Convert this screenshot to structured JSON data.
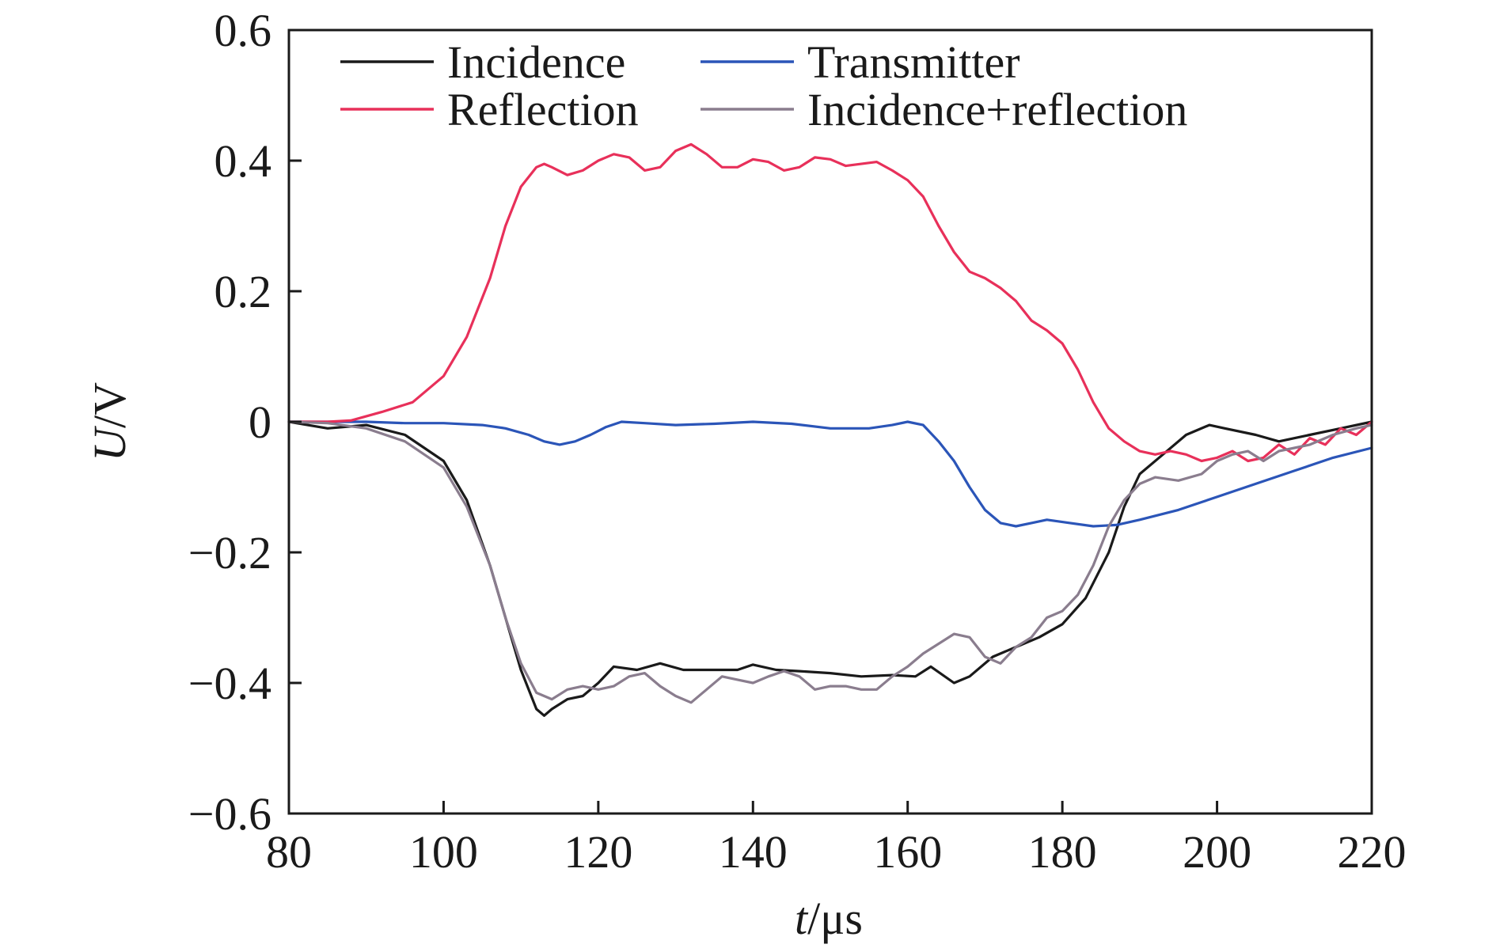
{
  "chart_data": {
    "type": "line",
    "title": "",
    "xlabel": {
      "italic": "t",
      "rest": "/μs"
    },
    "ylabel": {
      "italic": "U",
      "rest": "/V"
    },
    "xlim": [
      80,
      220
    ],
    "ylim": [
      -0.6,
      0.6
    ],
    "xticks": [
      80,
      100,
      120,
      140,
      160,
      180,
      200,
      220
    ],
    "yticks": [
      0.6,
      0.4,
      0.2,
      0,
      -0.2,
      -0.4,
      -0.6
    ],
    "xtick_labels": [
      "80",
      "100",
      "120",
      "140",
      "160",
      "180",
      "200",
      "220"
    ],
    "ytick_labels": [
      "0.6",
      "0.4",
      "0.2",
      "0",
      "−0.2",
      "−0.4",
      "−0.6"
    ],
    "grid": false,
    "legend_position": "top",
    "series": [
      {
        "name": "Incidence",
        "color": "#1a1a1a",
        "points": [
          [
            80,
            0
          ],
          [
            85,
            -0.01
          ],
          [
            90,
            -0.005
          ],
          [
            95,
            -0.02
          ],
          [
            100,
            -0.06
          ],
          [
            103,
            -0.12
          ],
          [
            106,
            -0.22
          ],
          [
            108,
            -0.3
          ],
          [
            110,
            -0.38
          ],
          [
            112,
            -0.44
          ],
          [
            113,
            -0.45
          ],
          [
            114,
            -0.44
          ],
          [
            116,
            -0.425
          ],
          [
            118,
            -0.42
          ],
          [
            120,
            -0.4
          ],
          [
            122,
            -0.375
          ],
          [
            125,
            -0.38
          ],
          [
            128,
            -0.37
          ],
          [
            131,
            -0.38
          ],
          [
            135,
            -0.38
          ],
          [
            138,
            -0.38
          ],
          [
            140,
            -0.372
          ],
          [
            143,
            -0.38
          ],
          [
            146,
            -0.382
          ],
          [
            150,
            -0.385
          ],
          [
            154,
            -0.39
          ],
          [
            158,
            -0.388
          ],
          [
            161,
            -0.39
          ],
          [
            163,
            -0.375
          ],
          [
            166,
            -0.4
          ],
          [
            168,
            -0.39
          ],
          [
            171,
            -0.36
          ],
          [
            174,
            -0.345
          ],
          [
            177,
            -0.33
          ],
          [
            180,
            -0.31
          ],
          [
            183,
            -0.27
          ],
          [
            186,
            -0.2
          ],
          [
            188,
            -0.13
          ],
          [
            190,
            -0.08
          ],
          [
            193,
            -0.05
          ],
          [
            196,
            -0.02
          ],
          [
            199,
            -0.005
          ],
          [
            201,
            -0.01
          ],
          [
            205,
            -0.02
          ],
          [
            208,
            -0.03
          ],
          [
            212,
            -0.02
          ],
          [
            216,
            -0.01
          ],
          [
            220,
            0
          ]
        ]
      },
      {
        "name": "Transmitter",
        "color": "#2b55b8",
        "points": [
          [
            80,
            0
          ],
          [
            90,
            0
          ],
          [
            95,
            -0.002
          ],
          [
            100,
            -0.002
          ],
          [
            105,
            -0.005
          ],
          [
            108,
            -0.01
          ],
          [
            111,
            -0.02
          ],
          [
            113,
            -0.03
          ],
          [
            115,
            -0.035
          ],
          [
            117,
            -0.03
          ],
          [
            119,
            -0.02
          ],
          [
            121,
            -0.008
          ],
          [
            123,
            0
          ],
          [
            126,
            -0.002
          ],
          [
            130,
            -0.005
          ],
          [
            135,
            -0.003
          ],
          [
            140,
            0
          ],
          [
            145,
            -0.003
          ],
          [
            150,
            -0.01
          ],
          [
            155,
            -0.01
          ],
          [
            158,
            -0.005
          ],
          [
            160,
            0
          ],
          [
            162,
            -0.005
          ],
          [
            164,
            -0.03
          ],
          [
            166,
            -0.06
          ],
          [
            168,
            -0.1
          ],
          [
            170,
            -0.135
          ],
          [
            172,
            -0.155
          ],
          [
            174,
            -0.16
          ],
          [
            176,
            -0.155
          ],
          [
            178,
            -0.15
          ],
          [
            181,
            -0.155
          ],
          [
            184,
            -0.16
          ],
          [
            187,
            -0.158
          ],
          [
            190,
            -0.15
          ],
          [
            195,
            -0.135
          ],
          [
            200,
            -0.115
          ],
          [
            205,
            -0.095
          ],
          [
            210,
            -0.075
          ],
          [
            215,
            -0.055
          ],
          [
            220,
            -0.04
          ]
        ]
      },
      {
        "name": "Reflection",
        "color": "#e8305a",
        "points": [
          [
            80,
            0
          ],
          [
            85,
            0
          ],
          [
            88,
            0.002
          ],
          [
            92,
            0.015
          ],
          [
            96,
            0.03
          ],
          [
            100,
            0.07
          ],
          [
            103,
            0.13
          ],
          [
            106,
            0.22
          ],
          [
            108,
            0.3
          ],
          [
            110,
            0.36
          ],
          [
            112,
            0.39
          ],
          [
            113,
            0.395
          ],
          [
            114,
            0.39
          ],
          [
            116,
            0.378
          ],
          [
            118,
            0.385
          ],
          [
            120,
            0.4
          ],
          [
            122,
            0.41
          ],
          [
            124,
            0.405
          ],
          [
            126,
            0.385
          ],
          [
            128,
            0.39
          ],
          [
            130,
            0.415
          ],
          [
            132,
            0.425
          ],
          [
            134,
            0.41
          ],
          [
            136,
            0.39
          ],
          [
            138,
            0.39
          ],
          [
            140,
            0.402
          ],
          [
            142,
            0.398
          ],
          [
            144,
            0.385
          ],
          [
            146,
            0.39
          ],
          [
            148,
            0.405
          ],
          [
            150,
            0.402
          ],
          [
            152,
            0.392
          ],
          [
            154,
            0.395
          ],
          [
            156,
            0.398
          ],
          [
            158,
            0.385
          ],
          [
            160,
            0.37
          ],
          [
            162,
            0.345
          ],
          [
            164,
            0.3
          ],
          [
            166,
            0.26
          ],
          [
            168,
            0.23
          ],
          [
            170,
            0.22
          ],
          [
            172,
            0.205
          ],
          [
            174,
            0.185
          ],
          [
            176,
            0.155
          ],
          [
            178,
            0.14
          ],
          [
            180,
            0.12
          ],
          [
            182,
            0.08
          ],
          [
            184,
            0.03
          ],
          [
            186,
            -0.01
          ],
          [
            188,
            -0.03
          ],
          [
            190,
            -0.045
          ],
          [
            192,
            -0.05
          ],
          [
            194,
            -0.045
          ],
          [
            196,
            -0.05
          ],
          [
            198,
            -0.06
          ],
          [
            200,
            -0.055
          ],
          [
            202,
            -0.045
          ],
          [
            204,
            -0.06
          ],
          [
            206,
            -0.055
          ],
          [
            208,
            -0.035
          ],
          [
            210,
            -0.05
          ],
          [
            212,
            -0.025
          ],
          [
            214,
            -0.035
          ],
          [
            216,
            -0.01
          ],
          [
            218,
            -0.02
          ],
          [
            220,
            0
          ]
        ]
      },
      {
        "name": "Incidence+reflection",
        "color": "#8a7d8e",
        "points": [
          [
            80,
            0
          ],
          [
            85,
            -0.002
          ],
          [
            90,
            -0.01
          ],
          [
            95,
            -0.03
          ],
          [
            100,
            -0.07
          ],
          [
            103,
            -0.13
          ],
          [
            106,
            -0.22
          ],
          [
            108,
            -0.3
          ],
          [
            110,
            -0.37
          ],
          [
            112,
            -0.415
          ],
          [
            114,
            -0.425
          ],
          [
            116,
            -0.41
          ],
          [
            118,
            -0.405
          ],
          [
            120,
            -0.41
          ],
          [
            122,
            -0.405
          ],
          [
            124,
            -0.39
          ],
          [
            126,
            -0.385
          ],
          [
            128,
            -0.405
          ],
          [
            130,
            -0.42
          ],
          [
            132,
            -0.43
          ],
          [
            134,
            -0.41
          ],
          [
            136,
            -0.39
          ],
          [
            138,
            -0.395
          ],
          [
            140,
            -0.4
          ],
          [
            142,
            -0.39
          ],
          [
            144,
            -0.382
          ],
          [
            146,
            -0.39
          ],
          [
            148,
            -0.41
          ],
          [
            150,
            -0.405
          ],
          [
            152,
            -0.405
          ],
          [
            154,
            -0.41
          ],
          [
            156,
            -0.41
          ],
          [
            158,
            -0.39
          ],
          [
            160,
            -0.375
          ],
          [
            162,
            -0.355
          ],
          [
            164,
            -0.34
          ],
          [
            166,
            -0.325
          ],
          [
            168,
            -0.33
          ],
          [
            170,
            -0.36
          ],
          [
            172,
            -0.37
          ],
          [
            174,
            -0.345
          ],
          [
            176,
            -0.33
          ],
          [
            178,
            -0.3
          ],
          [
            180,
            -0.29
          ],
          [
            182,
            -0.265
          ],
          [
            184,
            -0.22
          ],
          [
            186,
            -0.16
          ],
          [
            188,
            -0.12
          ],
          [
            190,
            -0.095
          ],
          [
            192,
            -0.085
          ],
          [
            195,
            -0.09
          ],
          [
            198,
            -0.08
          ],
          [
            200,
            -0.06
          ],
          [
            202,
            -0.05
          ],
          [
            204,
            -0.045
          ],
          [
            206,
            -0.06
          ],
          [
            208,
            -0.045
          ],
          [
            210,
            -0.04
          ],
          [
            212,
            -0.035
          ],
          [
            215,
            -0.02
          ],
          [
            218,
            -0.01
          ],
          [
            220,
            -0.005
          ]
        ]
      }
    ]
  }
}
